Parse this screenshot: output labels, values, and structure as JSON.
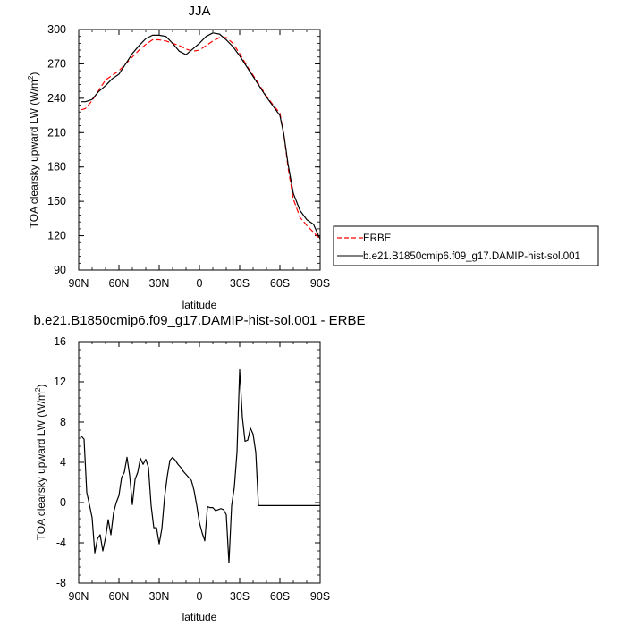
{
  "chart_data": [
    {
      "type": "line",
      "title": "JJA",
      "xlabel": "latitude",
      "ylabel": "TOA clearsky upward LW (W/m",
      "ylabel_sup": "2",
      "ylabel_close": ")",
      "xlim": [
        90,
        -90
      ],
      "ylim": [
        90,
        300
      ],
      "x_ticks": [
        {
          "value": 90,
          "label": "90N"
        },
        {
          "value": 60,
          "label": "60N"
        },
        {
          "value": 30,
          "label": "30N"
        },
        {
          "value": 0,
          "label": "0"
        },
        {
          "value": -30,
          "label": "30S"
        },
        {
          "value": -60,
          "label": "60S"
        },
        {
          "value": -90,
          "label": "90S"
        }
      ],
      "y_ticks": [
        {
          "value": 90,
          "label": "90"
        },
        {
          "value": 120,
          "label": "120"
        },
        {
          "value": 150,
          "label": "150"
        },
        {
          "value": 180,
          "label": "180"
        },
        {
          "value": 210,
          "label": "210"
        },
        {
          "value": 240,
          "label": "240"
        },
        {
          "value": 270,
          "label": "270"
        },
        {
          "value": 300,
          "label": "300"
        }
      ],
      "grid": false,
      "legend": "outside right",
      "series": [
        {
          "name": "ERBE",
          "color": "#ff0000",
          "dash": "dashed",
          "x": [
            88,
            85,
            80,
            75,
            70,
            65,
            60,
            55,
            50,
            45,
            40,
            35,
            30,
            25,
            20,
            15,
            10,
            5,
            0,
            -5,
            -10,
            -15,
            -20,
            -25,
            -30,
            -35,
            -40,
            -45,
            -50,
            -55,
            -60,
            -63,
            -66,
            -70,
            -75,
            -80,
            -85,
            -90
          ],
          "y": [
            230,
            231,
            238,
            247,
            256,
            260,
            264,
            270,
            276,
            282,
            287,
            291,
            291,
            290,
            288,
            286,
            283,
            281,
            282,
            286,
            290,
            293,
            293,
            288,
            279,
            269,
            260,
            251,
            242,
            234,
            227,
            208,
            180,
            152,
            136,
            129,
            123,
            117
          ]
        },
        {
          "name": "b.e21.B1850cmip6.f09_g17.DAMIP-hist-sol.001",
          "color": "#000000",
          "dash": "solid",
          "x": [
            88,
            85,
            80,
            75,
            70,
            65,
            60,
            55,
            50,
            45,
            40,
            35,
            30,
            25,
            20,
            15,
            10,
            5,
            0,
            -5,
            -10,
            -15,
            -20,
            -25,
            -30,
            -35,
            -40,
            -45,
            -50,
            -55,
            -60,
            -63,
            -66,
            -70,
            -75,
            -80,
            -85,
            -90
          ],
          "y": [
            237,
            237,
            239,
            246,
            251,
            257,
            261,
            270,
            279,
            286,
            292,
            295,
            295,
            294,
            288,
            281,
            278,
            283,
            288,
            294,
            297,
            296,
            291,
            285,
            277,
            268,
            259,
            250,
            241,
            233,
            225,
            208,
            183,
            157,
            142,
            134,
            130,
            117
          ]
        }
      ]
    },
    {
      "type": "line",
      "title": "b.e21.B1850cmip6.f09_g17.DAMIP-hist-sol.001 - ERBE",
      "xlabel": "latitude",
      "ylabel": "TOA clearsky upward LW (W/m",
      "ylabel_sup": "2",
      "ylabel_close": ")",
      "xlim": [
        90,
        -90
      ],
      "ylim": [
        -8,
        16
      ],
      "x_ticks": [
        {
          "value": 90,
          "label": "90N"
        },
        {
          "value": 60,
          "label": "60N"
        },
        {
          "value": 30,
          "label": "30N"
        },
        {
          "value": 0,
          "label": "0"
        },
        {
          "value": -30,
          "label": "30S"
        },
        {
          "value": -60,
          "label": "60S"
        },
        {
          "value": -90,
          "label": "90S"
        }
      ],
      "y_ticks": [
        {
          "value": -8,
          "label": "-8"
        },
        {
          "value": -4,
          "label": "-4"
        },
        {
          "value": 0,
          "label": "0"
        },
        {
          "value": 4,
          "label": "4"
        },
        {
          "value": 8,
          "label": "8"
        },
        {
          "value": 12,
          "label": "12"
        },
        {
          "value": 16,
          "label": "16"
        }
      ],
      "grid": false,
      "series": [
        {
          "color": "#000000",
          "dash": "solid",
          "x": [
            88,
            86,
            84,
            82,
            80,
            78,
            76,
            74,
            72,
            70,
            68,
            66,
            64,
            62,
            60,
            58,
            56,
            54,
            52,
            50,
            48,
            46,
            44,
            42,
            40,
            38,
            36,
            34,
            32,
            30,
            28,
            26,
            24,
            22,
            20,
            18,
            16,
            14,
            12,
            10,
            8,
            6,
            4,
            2,
            0,
            -2,
            -4,
            -6,
            -8,
            -10,
            -12,
            -14,
            -16,
            -18,
            -20,
            -22,
            -24,
            -26,
            -28,
            -30,
            -32,
            -34,
            -36,
            -38,
            -40,
            -42,
            -44,
            -46,
            -48,
            -50,
            -52,
            -54,
            -56,
            -58,
            -60,
            -62,
            -64,
            -66,
            -68,
            -70,
            -72,
            -74,
            -76,
            -78,
            -80,
            -82,
            -84,
            -86,
            -88,
            -90
          ],
          "y": [
            6.6,
            6.3,
            1.0,
            -0.2,
            -1.5,
            -5.0,
            -3.6,
            -3.2,
            -4.8,
            -3.5,
            -1.7,
            -3.2,
            -1.0,
            0.0,
            0.7,
            2.5,
            3.0,
            4.5,
            2.7,
            -0.2,
            2.3,
            3.0,
            4.4,
            3.8,
            4.3,
            3.5,
            -0.3,
            -2.5,
            -2.5,
            -4.1,
            -2.6,
            0.5,
            2.6,
            4.2,
            4.5,
            4.2,
            3.8,
            3.5,
            3.1,
            2.8,
            2.5,
            2.2,
            1.2,
            -0.3,
            -2.0,
            -3.0,
            -3.8,
            -0.4,
            -0.5,
            -0.5,
            -0.8,
            -0.7,
            -0.6,
            -0.7,
            -1.2,
            -6.0,
            -0.3,
            1.5,
            5.0,
            13.2,
            8.5,
            6.1,
            6.2,
            7.4,
            6.8,
            5.0,
            -0.3,
            -0.3,
            -0.3,
            -0.3,
            -0.3,
            -0.3,
            -0.3,
            -0.3,
            -0.3,
            -0.3,
            -0.3,
            -0.3,
            -0.3,
            -0.3,
            -0.3,
            -0.3,
            -0.3,
            -0.3,
            -0.3,
            -0.3,
            -0.3,
            -0.3,
            -0.3,
            -0.3
          ]
        }
      ]
    }
  ]
}
